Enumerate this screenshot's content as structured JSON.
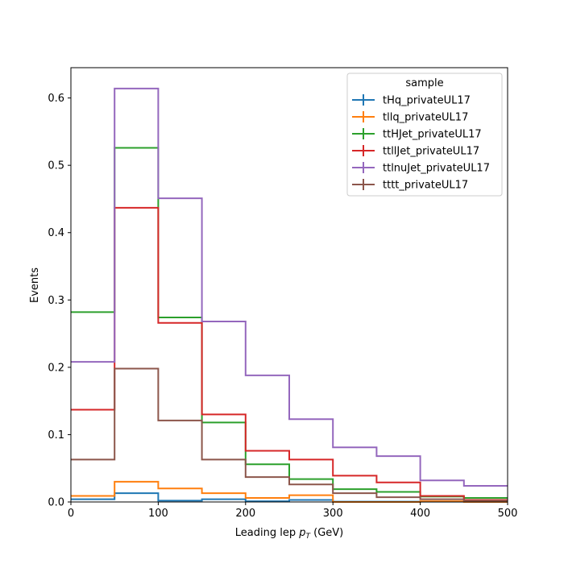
{
  "chart_data": {
    "type": "line",
    "style": "step-histogram",
    "xlabel": "Leading lep",
    "xlabel_sub": "T",
    "xlabel_unit": "(GeV)",
    "ylabel": "Events",
    "xlim": [
      0,
      500
    ],
    "ylim": [
      0,
      0.645
    ],
    "xticks": [
      "0",
      "100",
      "200",
      "300",
      "400",
      "500"
    ],
    "yticks": [
      "0.0",
      "0.1",
      "0.2",
      "0.3",
      "0.4",
      "0.5",
      "0.6"
    ],
    "bin_edges": [
      0,
      50,
      100,
      150,
      200,
      250,
      300,
      350,
      400,
      450,
      500
    ],
    "grid": false,
    "legend": {
      "title": "sample",
      "position": "top-right"
    },
    "series": [
      {
        "name": "tHq_privateUL17",
        "color": "#1f77b4",
        "values": [
          0.004,
          0.013,
          0.002,
          0.004,
          0.001,
          0.003,
          0.0005,
          0.0005,
          0.0005,
          0.0005
        ]
      },
      {
        "name": "tllq_privateUL17",
        "color": "#ff7f0e",
        "values": [
          0.009,
          0.03,
          0.02,
          0.013,
          0.006,
          0.01,
          0.0,
          0.0,
          0.001,
          0.0
        ]
      },
      {
        "name": "ttHJet_privateUL17",
        "color": "#2ca02c",
        "values": [
          0.282,
          0.526,
          0.274,
          0.118,
          0.056,
          0.034,
          0.019,
          0.015,
          0.008,
          0.006
        ]
      },
      {
        "name": "ttllJet_privateUL17",
        "color": "#d62728",
        "values": [
          0.137,
          0.437,
          0.266,
          0.13,
          0.076,
          0.063,
          0.039,
          0.029,
          0.009,
          0.003
        ]
      },
      {
        "name": "ttlnuJet_privateUL17",
        "color": "#9467bd",
        "values": [
          0.208,
          0.614,
          0.451,
          0.268,
          0.188,
          0.123,
          0.081,
          0.068,
          0.032,
          0.024
        ]
      },
      {
        "name": "tttt_privateUL17",
        "color": "#8c564b",
        "values": [
          0.063,
          0.198,
          0.121,
          0.063,
          0.037,
          0.026,
          0.013,
          0.007,
          0.004,
          0.002
        ]
      }
    ]
  }
}
